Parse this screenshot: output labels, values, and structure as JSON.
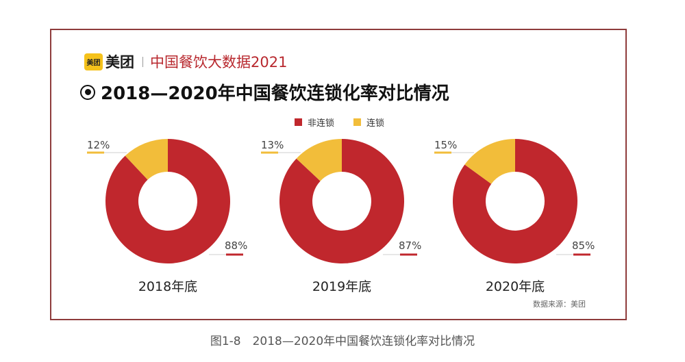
{
  "brand": {
    "logo_badge": "美团",
    "logo_text": "美团",
    "subtitle": "中国餐饮大数据2021"
  },
  "title": "2018—2020年中国餐饮连锁化率对比情况",
  "source": "数据来源：美团",
  "caption": "图1-8　2018—2020年中国餐饮连锁化率对比情况",
  "colors": {
    "non_chain": "#c0272d",
    "chain": "#f2bd3a"
  },
  "chart_data": {
    "type": "pie",
    "series_names": [
      "非连锁",
      "连锁"
    ],
    "charts": [
      {
        "label": "2018年底",
        "non_chain": 88,
        "chain": 12,
        "non_chain_label": "88%",
        "chain_label": "12%"
      },
      {
        "label": "2019年底",
        "non_chain": 87,
        "chain": 13,
        "non_chain_label": "87%",
        "chain_label": "13%"
      },
      {
        "label": "2020年底",
        "non_chain": 85,
        "chain": 15,
        "non_chain_label": "85%",
        "chain_label": "15%"
      }
    ]
  }
}
